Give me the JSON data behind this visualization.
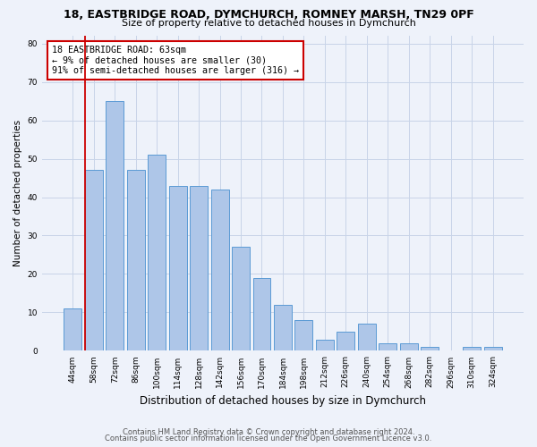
{
  "title_line1": "18, EASTBRIDGE ROAD, DYMCHURCH, ROMNEY MARSH, TN29 0PF",
  "title_line2": "Size of property relative to detached houses in Dymchurch",
  "xlabel": "Distribution of detached houses by size in Dymchurch",
  "ylabel": "Number of detached properties",
  "categories": [
    "44sqm",
    "58sqm",
    "72sqm",
    "86sqm",
    "100sqm",
    "114sqm",
    "128sqm",
    "142sqm",
    "156sqm",
    "170sqm",
    "184sqm",
    "198sqm",
    "212sqm",
    "226sqm",
    "240sqm",
    "254sqm",
    "268sqm",
    "282sqm",
    "296sqm",
    "310sqm",
    "324sqm"
  ],
  "values": [
    11,
    47,
    65,
    47,
    51,
    43,
    43,
    42,
    27,
    19,
    12,
    8,
    3,
    5,
    7,
    2,
    2,
    1,
    0,
    1,
    1
  ],
  "bar_color": "#aec6e8",
  "bar_edge_color": "#5b9bd5",
  "marker_bar_index": 1,
  "marker_color": "#cc0000",
  "annotation_text": "18 EASTBRIDGE ROAD: 63sqm\n← 9% of detached houses are smaller (30)\n91% of semi-detached houses are larger (316) →",
  "annotation_box_color": "#ffffff",
  "annotation_box_edge": "#cc0000",
  "ylim": [
    0,
    82
  ],
  "yticks": [
    0,
    10,
    20,
    30,
    40,
    50,
    60,
    70,
    80
  ],
  "grid_color": "#c8d4e8",
  "footer_line1": "Contains HM Land Registry data © Crown copyright and database right 2024.",
  "footer_line2": "Contains public sector information licensed under the Open Government Licence v3.0.",
  "bg_color": "#eef2fa"
}
